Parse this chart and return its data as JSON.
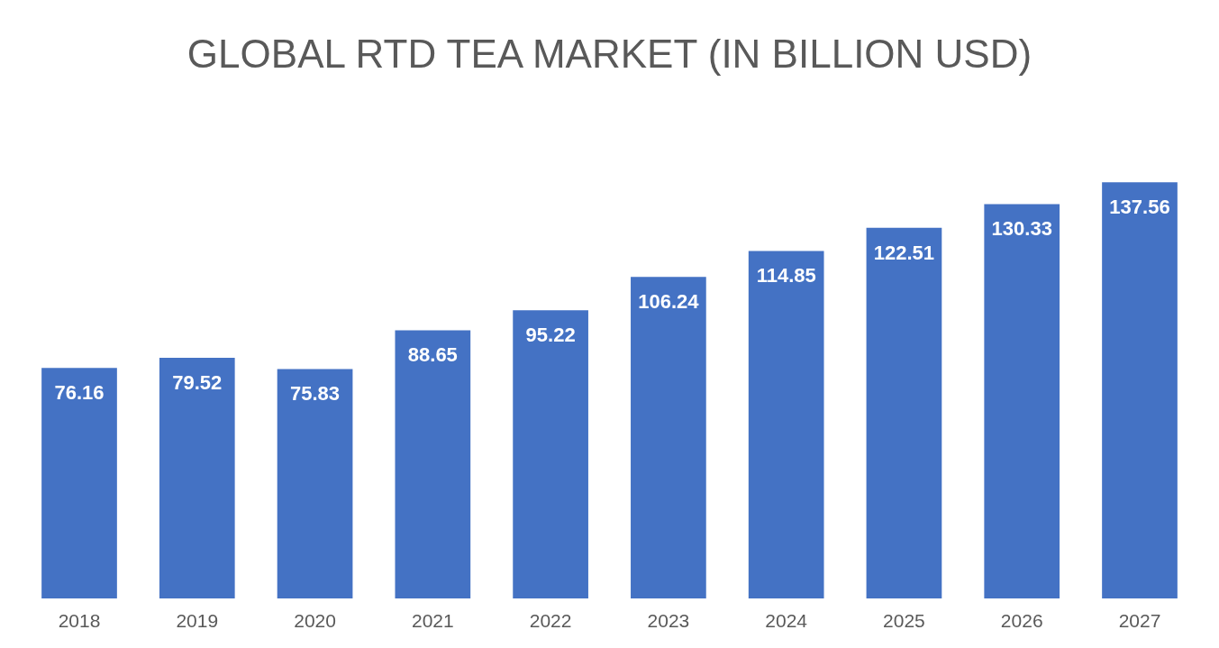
{
  "chart_data": {
    "type": "bar",
    "title": "GLOBAL RTD TEA MARKET (IN BILLION USD)",
    "categories": [
      "2018",
      "2019",
      "2020",
      "2021",
      "2022",
      "2023",
      "2024",
      "2025",
      "2026",
      "2027"
    ],
    "values": [
      76.16,
      79.52,
      75.83,
      88.65,
      95.22,
      106.24,
      114.85,
      122.51,
      130.33,
      137.56
    ],
    "color": "#4472c4",
    "data_labels": true,
    "tick_labels": "x"
  }
}
